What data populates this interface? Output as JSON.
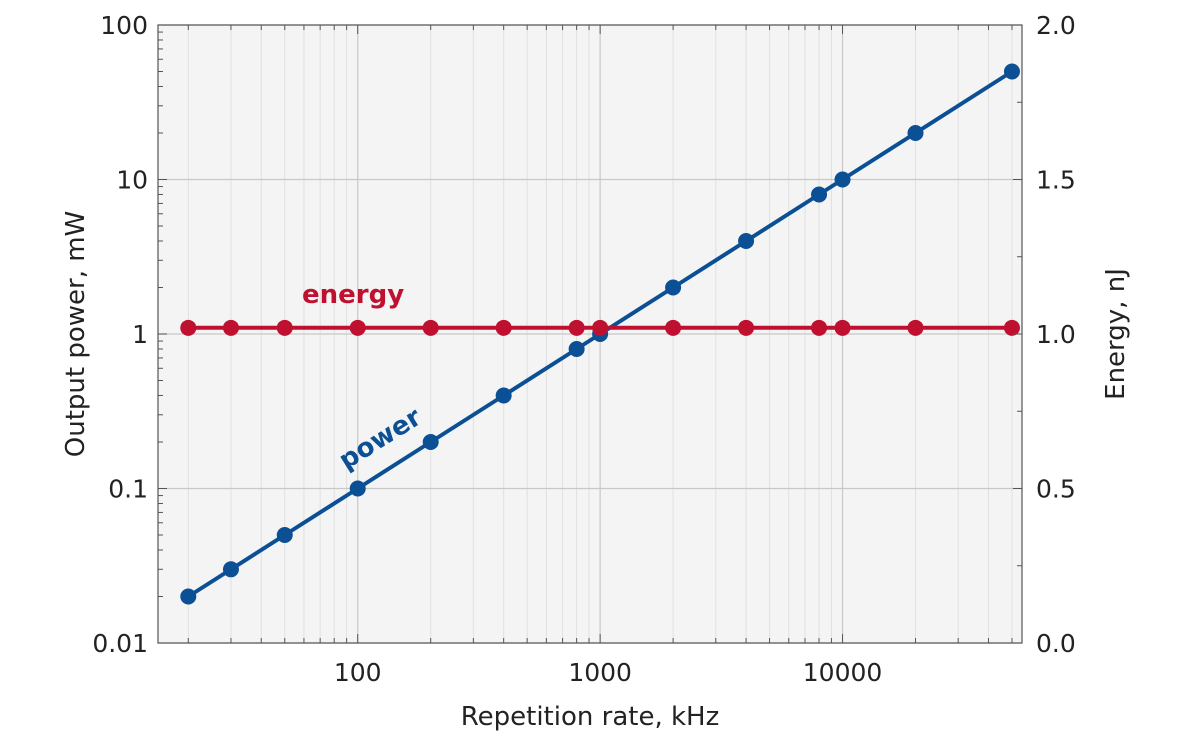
{
  "chart_data": {
    "type": "line",
    "xlabel": "Repetition rate, kHz",
    "ylabel_left": "Output power, mW",
    "ylabel_right": "Energy, nJ",
    "x_scale": "log",
    "y_left_scale": "log",
    "y_right_scale": "linear",
    "xlim": [
      15,
      55000
    ],
    "ylim_left": [
      0.01,
      100
    ],
    "ylim_right": [
      0.0,
      2.0
    ],
    "x_tick_labels": [
      "100",
      "1000",
      "10000"
    ],
    "x_tick_values": [
      100,
      1000,
      10000
    ],
    "y_left_tick_labels": [
      "0.01",
      "0.1",
      "1",
      "10",
      "100"
    ],
    "y_left_tick_values": [
      0.01,
      0.1,
      1,
      10,
      100
    ],
    "y_right_tick_labels": [
      "0.0",
      "0.5",
      "1.0",
      "1.5",
      "2.0"
    ],
    "y_right_tick_values": [
      0.0,
      0.5,
      1.0,
      1.5,
      2.0
    ],
    "grid": true,
    "series": [
      {
        "name": "power",
        "axis": "left",
        "color": "#0b4f94",
        "x": [
          20,
          30,
          50,
          100,
          200,
          400,
          800,
          1000,
          2000,
          4000,
          8000,
          10000,
          20000,
          50000
        ],
        "y": [
          0.02,
          0.03,
          0.05,
          0.1,
          0.2,
          0.4,
          0.8,
          1.0,
          2.0,
          4.0,
          8.0,
          10.0,
          20.0,
          50.0
        ]
      },
      {
        "name": "energy",
        "axis": "right",
        "color": "#c0102f",
        "x": [
          20,
          30,
          50,
          100,
          200,
          400,
          800,
          1000,
          2000,
          4000,
          8000,
          10000,
          20000,
          50000
        ],
        "y": [
          1.02,
          1.02,
          1.02,
          1.02,
          1.02,
          1.02,
          1.02,
          1.02,
          1.02,
          1.02,
          1.02,
          1.02,
          1.02,
          1.02
        ]
      }
    ],
    "colors": {
      "plot_background": "#f4f4f4",
      "grid_major": "#c8c8c8",
      "grid_minor": "#e0e0e0",
      "axis": "#555555"
    }
  }
}
